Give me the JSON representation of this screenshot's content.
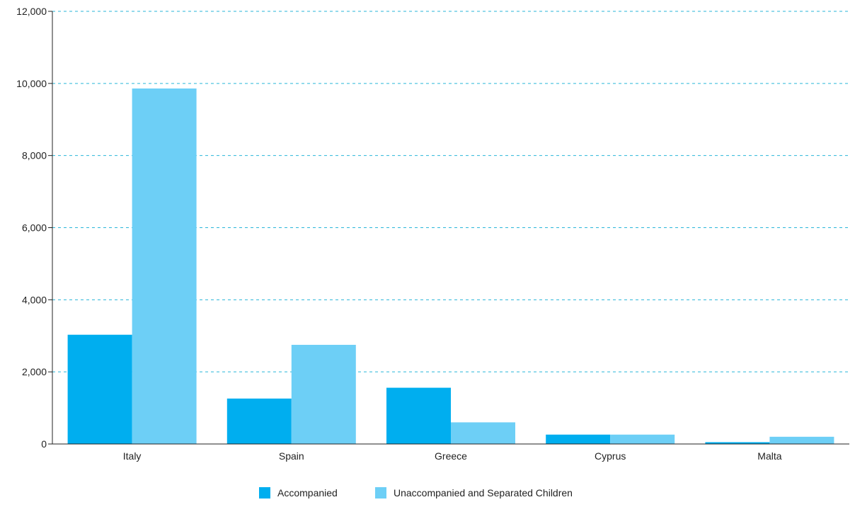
{
  "chart_data": {
    "type": "bar",
    "categories": [
      "Italy",
      "Spain",
      "Greece",
      "Cyprus",
      "Malta"
    ],
    "series": [
      {
        "name": "Accompanied",
        "values": [
          3030,
          1260,
          1560,
          260,
          50
        ]
      },
      {
        "name": "Unaccompanied and Separated Children",
        "values": [
          9860,
          2750,
          600,
          260,
          200
        ]
      }
    ],
    "y_ticks": [
      "0",
      "2,000",
      "4,000",
      "6,000",
      "8,000",
      "10,000",
      "12,000"
    ],
    "ylim": [
      0,
      12000
    ],
    "grid": true,
    "legend_position": "bottom-center",
    "colors": {
      "Accompanied": "#00aeef",
      "Unaccompanied and Separated Children": "#6dcff6",
      "grid": "#29b6d9",
      "axis": "#222222"
    }
  }
}
